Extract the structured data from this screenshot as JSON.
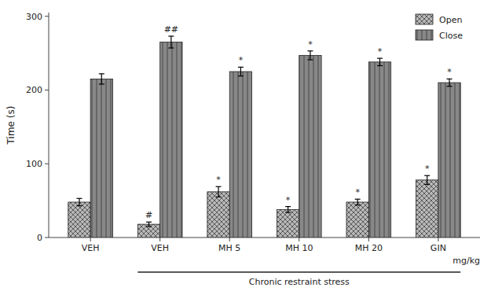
{
  "chart_data": {
    "type": "bar",
    "categories": [
      "VEH",
      "VEH",
      "MH 5",
      "MH 10",
      "MH 20",
      "GIN"
    ],
    "series": [
      {
        "name": "Open",
        "color": "#b8b8b8",
        "values": [
          48,
          18,
          62,
          38,
          48,
          78
        ],
        "errors": [
          5,
          3,
          7,
          4,
          4,
          6
        ],
        "annotations": [
          null,
          "#",
          "*",
          "*",
          "*",
          "*"
        ]
      },
      {
        "name": "Close",
        "color": "#888888",
        "values": [
          215,
          265,
          225,
          247,
          238,
          210
        ],
        "errors": [
          7,
          8,
          6,
          6,
          5,
          5
        ],
        "annotations": [
          null,
          "##",
          "*",
          "*",
          "*",
          "*"
        ]
      }
    ],
    "ylabel": "Time (s)",
    "xlabel": "mg/kg",
    "ylim": [
      0,
      305
    ],
    "yticks": [
      0,
      100,
      200,
      300
    ],
    "bracket": {
      "label": "Chronic restraint stress",
      "from": 1,
      "to": 5
    },
    "legend": "upper right"
  }
}
